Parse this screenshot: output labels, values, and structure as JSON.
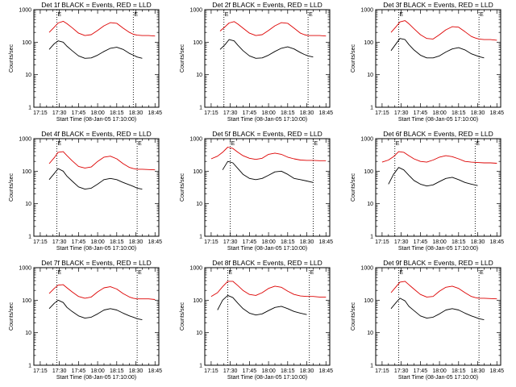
{
  "panels_meta": {
    "xlabel": "Start Time (08-Jan-05 17:10:00)",
    "ylabel": "Counts/sec",
    "x_ticks": [
      "17:15",
      "17:30",
      "17:45",
      "18:00",
      "18:15",
      "18:30",
      "18:45"
    ],
    "y_ticks": [
      "1",
      "10",
      "100",
      "1000"
    ],
    "marker_label": "E"
  },
  "colors": {
    "events": "#000000",
    "lld": "#dd0000",
    "axis": "#000000"
  },
  "chart_data": [
    {
      "type": "line",
      "title": "Det 1f BLACK = Events, RED = LLD",
      "xlabel": "Start Time (08-Jan-05 17:10:00)",
      "ylabel": "Counts/sec",
      "xlim": [
        "17:10",
        "18:48"
      ],
      "ylim": [
        1,
        1000
      ],
      "yscale": "log",
      "vlines": [
        "17:28",
        "18:28"
      ],
      "grid": false,
      "x": [
        "17:22",
        "17:26",
        "17:29",
        "17:33",
        "17:36",
        "17:40",
        "17:45",
        "17:50",
        "17:55",
        "18:00",
        "18:05",
        "18:10",
        "18:15",
        "18:20",
        "18:25",
        "18:28",
        "18:31",
        "18:35",
        "18:40",
        "18:45"
      ],
      "series": [
        {
          "values": [
            200,
            290,
            390,
            440,
            370,
            280,
            190,
            160,
            170,
            230,
            320,
            400,
            380,
            270,
            200,
            175,
            165,
            160,
            160,
            155
          ]
        },
        {
          "values": [
            60,
            90,
            110,
            100,
            75,
            55,
            38,
            32,
            33,
            40,
            52,
            65,
            70,
            60,
            45,
            40,
            35,
            32,
            null,
            null
          ]
        }
      ]
    },
    {
      "type": "line",
      "title": "Det 2f BLACK = Events, RED = LLD",
      "xlabel": "Start Time (08-Jan-05 17:10:00)",
      "ylabel": "Counts/sec",
      "xlim": [
        "17:10",
        "18:48"
      ],
      "ylim": [
        1,
        1000
      ],
      "yscale": "log",
      "vlines": [
        "17:25",
        "18:31"
      ],
      "grid": false,
      "x": [
        "17:22",
        "17:26",
        "17:29",
        "17:33",
        "17:36",
        "17:40",
        "17:45",
        "17:50",
        "17:55",
        "18:00",
        "18:05",
        "18:10",
        "18:15",
        "18:20",
        "18:25",
        "18:28",
        "18:31",
        "18:35",
        "18:40",
        "18:45"
      ],
      "series": [
        {
          "values": [
            220,
            300,
            390,
            430,
            360,
            270,
            190,
            160,
            170,
            230,
            320,
            400,
            380,
            270,
            190,
            170,
            160,
            160,
            160,
            155
          ]
        },
        {
          "values": [
            60,
            85,
            120,
            110,
            80,
            55,
            38,
            32,
            33,
            40,
            52,
            65,
            72,
            62,
            48,
            42,
            38,
            35,
            null,
            null
          ]
        }
      ]
    },
    {
      "type": "line",
      "title": "Det 3f BLACK = Events, RED = LLD",
      "xlabel": "Start Time (08-Jan-05 17:10:00)",
      "ylabel": "Counts/sec",
      "xlim": [
        "17:10",
        "18:48"
      ],
      "ylim": [
        1,
        1000
      ],
      "yscale": "log",
      "vlines": [
        "17:28",
        "18:31"
      ],
      "grid": false,
      "x": [
        "17:22",
        "17:26",
        "17:29",
        "17:33",
        "17:36",
        "17:40",
        "17:45",
        "17:50",
        "17:55",
        "18:00",
        "18:05",
        "18:10",
        "18:15",
        "18:20",
        "18:25",
        "18:28",
        "18:31",
        "18:35",
        "18:40",
        "18:45"
      ],
      "series": [
        {
          "values": [
            200,
            300,
            420,
            460,
            370,
            260,
            170,
            130,
            125,
            170,
            240,
            300,
            290,
            210,
            150,
            135,
            125,
            120,
            120,
            115
          ]
        },
        {
          "values": [
            55,
            90,
            130,
            120,
            85,
            58,
            40,
            33,
            33,
            38,
            50,
            62,
            68,
            58,
            44,
            40,
            36,
            33,
            null,
            null
          ]
        }
      ]
    },
    {
      "type": "line",
      "title": "Det 4f BLACK = Events, RED = LLD",
      "xlabel": "Start Time (08-Jan-05 17:10:00)",
      "ylabel": "Counts/sec",
      "xlim": [
        "17:10",
        "18:48"
      ],
      "ylim": [
        1,
        1000
      ],
      "yscale": "log",
      "vlines": [
        "17:28",
        "18:31"
      ],
      "grid": false,
      "x": [
        "17:22",
        "17:26",
        "17:29",
        "17:33",
        "17:36",
        "17:40",
        "17:45",
        "17:50",
        "17:55",
        "18:00",
        "18:05",
        "18:10",
        "18:15",
        "18:20",
        "18:25",
        "18:28",
        "18:31",
        "18:35",
        "18:40",
        "18:45"
      ],
      "series": [
        {
          "values": [
            170,
            260,
            380,
            400,
            300,
            210,
            140,
            125,
            135,
            200,
            270,
            290,
            240,
            170,
            130,
            120,
            115,
            115,
            112,
            110
          ]
        },
        {
          "values": [
            55,
            85,
            120,
            100,
            70,
            50,
            33,
            28,
            30,
            40,
            55,
            60,
            55,
            45,
            38,
            34,
            30,
            28,
            null,
            null
          ]
        }
      ]
    },
    {
      "type": "line",
      "title": "Det 5f BLACK = Events, RED = LLD",
      "xlabel": "Start Time (08-Jan-05 17:10:00)",
      "ylabel": "Counts/sec",
      "xlim": [
        "17:10",
        "18:48"
      ],
      "ylim": [
        1,
        1000
      ],
      "yscale": "log",
      "vlines": [
        "17:30",
        "18:35"
      ],
      "grid": false,
      "x": [
        "17:15",
        "17:20",
        "17:24",
        "17:28",
        "17:32",
        "17:36",
        "17:40",
        "17:45",
        "17:50",
        "17:55",
        "18:00",
        "18:05",
        "18:10",
        "18:15",
        "18:20",
        "18:25",
        "18:30",
        "18:35",
        "18:40",
        "18:45"
      ],
      "series": [
        {
          "values": [
            240,
            290,
            380,
            550,
            500,
            380,
            300,
            250,
            230,
            250,
            330,
            360,
            330,
            270,
            240,
            220,
            215,
            215,
            210,
            210
          ]
        },
        {
          "values": [
            null,
            null,
            110,
            200,
            180,
            120,
            80,
            60,
            55,
            60,
            75,
            95,
            100,
            80,
            60,
            55,
            50,
            45,
            null,
            null
          ]
        }
      ]
    },
    {
      "type": "line",
      "title": "Det 6f BLACK = Events, RED = LLD",
      "xlabel": "Start Time (08-Jan-05 17:10:00)",
      "ylabel": "Counts/sec",
      "xlim": [
        "17:10",
        "18:48"
      ],
      "ylim": [
        1,
        1000
      ],
      "yscale": "log",
      "vlines": [
        "17:25",
        "18:28"
      ],
      "grid": false,
      "x": [
        "17:15",
        "17:20",
        "17:24",
        "17:28",
        "17:32",
        "17:36",
        "17:40",
        "17:45",
        "17:50",
        "17:55",
        "18:00",
        "18:05",
        "18:10",
        "18:15",
        "18:20",
        "18:25",
        "18:30",
        "18:35",
        "18:40",
        "18:45"
      ],
      "series": [
        {
          "values": [
            190,
            220,
            280,
            400,
            380,
            300,
            240,
            200,
            190,
            220,
            270,
            300,
            280,
            240,
            200,
            190,
            185,
            180,
            180,
            175
          ]
        },
        {
          "values": [
            null,
            40,
            80,
            130,
            110,
            75,
            52,
            40,
            35,
            38,
            48,
            60,
            65,
            55,
            45,
            40,
            36,
            null,
            null,
            null
          ]
        }
      ]
    },
    {
      "type": "line",
      "title": "Det 7f BLACK = Events, RED = LLD",
      "xlabel": "Start Time (08-Jan-05 17:10:00)",
      "ylabel": "Counts/sec",
      "xlim": [
        "17:10",
        "18:48"
      ],
      "ylim": [
        1,
        1000
      ],
      "yscale": "log",
      "vlines": [
        "17:28",
        "18:31"
      ],
      "grid": false,
      "x": [
        "17:22",
        "17:26",
        "17:29",
        "17:33",
        "17:36",
        "17:40",
        "17:45",
        "17:50",
        "17:55",
        "18:00",
        "18:05",
        "18:10",
        "18:15",
        "18:20",
        "18:25",
        "18:28",
        "18:31",
        "18:35",
        "18:40",
        "18:45"
      ],
      "series": [
        {
          "values": [
            160,
            230,
            290,
            300,
            240,
            180,
            130,
            115,
            125,
            180,
            240,
            260,
            220,
            160,
            125,
            115,
            110,
            110,
            110,
            105
          ]
        },
        {
          "values": [
            55,
            80,
            100,
            85,
            60,
            45,
            33,
            28,
            30,
            38,
            50,
            55,
            50,
            40,
            33,
            30,
            27,
            25,
            null,
            null
          ]
        }
      ]
    },
    {
      "type": "line",
      "title": "Det 8f BLACK = Events, RED = LLD",
      "xlabel": "Start Time (08-Jan-05 17:10:00)",
      "ylabel": "Counts/sec",
      "xlim": [
        "17:10",
        "18:48"
      ],
      "ylim": [
        1,
        1000
      ],
      "yscale": "log",
      "vlines": [
        "17:28",
        "18:32"
      ],
      "grid": false,
      "x": [
        "17:15",
        "17:20",
        "17:24",
        "17:28",
        "17:32",
        "17:36",
        "17:40",
        "17:45",
        "17:50",
        "17:55",
        "18:00",
        "18:05",
        "18:10",
        "18:15",
        "18:20",
        "18:25",
        "18:30",
        "18:35",
        "18:40",
        "18:45"
      ],
      "series": [
        {
          "values": [
            130,
            170,
            260,
            380,
            380,
            280,
            200,
            150,
            140,
            170,
            230,
            270,
            250,
            190,
            150,
            135,
            130,
            130,
            125,
            125
          ]
        },
        {
          "values": [
            null,
            50,
            100,
            140,
            120,
            80,
            55,
            40,
            35,
            38,
            48,
            60,
            65,
            55,
            45,
            40,
            36,
            null,
            null,
            null
          ]
        }
      ]
    },
    {
      "type": "line",
      "title": "Det 9f BLACK = Events, RED = LLD",
      "xlabel": "Start Time (08-Jan-05 17:10:00)",
      "ylabel": "Counts/sec",
      "xlim": [
        "17:10",
        "18:48"
      ],
      "ylim": [
        1,
        1000
      ],
      "yscale": "log",
      "vlines": [
        "17:28",
        "18:31"
      ],
      "grid": false,
      "x": [
        "17:22",
        "17:26",
        "17:29",
        "17:33",
        "17:36",
        "17:40",
        "17:45",
        "17:50",
        "17:55",
        "18:00",
        "18:05",
        "18:10",
        "18:15",
        "18:20",
        "18:25",
        "18:28",
        "18:31",
        "18:35",
        "18:40",
        "18:45"
      ],
      "series": [
        {
          "values": [
            170,
            260,
            360,
            380,
            300,
            220,
            150,
            125,
            130,
            190,
            250,
            270,
            230,
            170,
            130,
            120,
            115,
            115,
            112,
            110
          ]
        },
        {
          "values": [
            55,
            85,
            115,
            95,
            65,
            48,
            33,
            28,
            30,
            38,
            50,
            55,
            50,
            40,
            33,
            30,
            27,
            25,
            null,
            null
          ]
        }
      ]
    }
  ]
}
